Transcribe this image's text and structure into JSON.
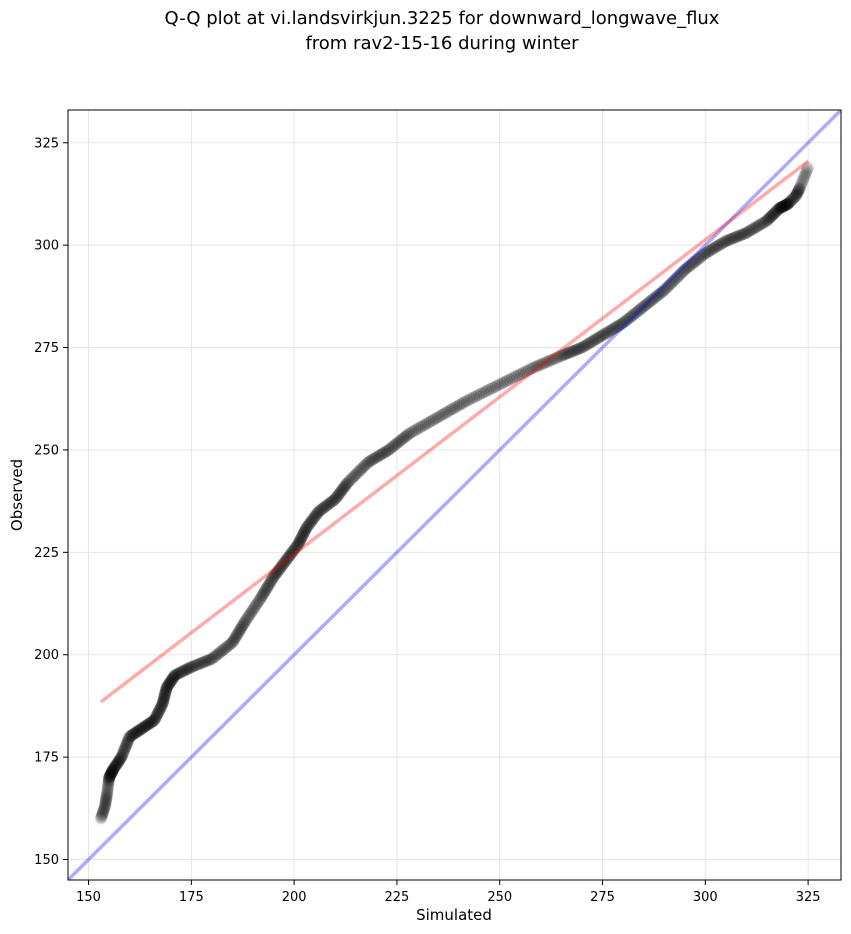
{
  "chart_data": {
    "type": "scatter",
    "title_lines": [
      "Q-Q plot at vi.landsvirkjun.3225 for downward_longwave_flux",
      "from rav2-15-16 during winter"
    ],
    "xlabel": "Simulated",
    "ylabel": "Observed",
    "xlim": [
      145,
      333
    ],
    "ylim": [
      145,
      333
    ],
    "xticks": [
      150,
      175,
      200,
      225,
      250,
      275,
      300,
      325
    ],
    "yticks": [
      150,
      175,
      200,
      225,
      250,
      275,
      300,
      325
    ],
    "grid": true,
    "colors": {
      "points": "#000000",
      "identity_line": "#0000ff",
      "fit_line": "#ff0000",
      "grid": "#e6e6e6"
    },
    "identity_line": {
      "x": [
        145,
        333
      ],
      "y": [
        145,
        333
      ]
    },
    "fit_line": {
      "x": [
        153,
        325
      ],
      "y": [
        188.5,
        320.5
      ]
    },
    "quantile_curve": [
      [
        153,
        160
      ],
      [
        154,
        163
      ],
      [
        154.5,
        166
      ],
      [
        155,
        170
      ],
      [
        156,
        172
      ],
      [
        158,
        175
      ],
      [
        160,
        180
      ],
      [
        163,
        182
      ],
      [
        166,
        184
      ],
      [
        168,
        188
      ],
      [
        169,
        192
      ],
      [
        171,
        195
      ],
      [
        175,
        197
      ],
      [
        180,
        199
      ],
      [
        185,
        203
      ],
      [
        188,
        208
      ],
      [
        192,
        214
      ],
      [
        195,
        219
      ],
      [
        198,
        223
      ],
      [
        201,
        227
      ],
      [
        203,
        231
      ],
      [
        206,
        235
      ],
      [
        210,
        238
      ],
      [
        213,
        242
      ],
      [
        218,
        247
      ],
      [
        223,
        250
      ],
      [
        228,
        254
      ],
      [
        235,
        258
      ],
      [
        242,
        262
      ],
      [
        250,
        266
      ],
      [
        258,
        270
      ],
      [
        265,
        273
      ],
      [
        270,
        275
      ],
      [
        275,
        278
      ],
      [
        280,
        281
      ],
      [
        285,
        285
      ],
      [
        290,
        289
      ],
      [
        295,
        294
      ],
      [
        300,
        298
      ],
      [
        305,
        301
      ],
      [
        310,
        303
      ],
      [
        315,
        306
      ],
      [
        318,
        309
      ],
      [
        320,
        310
      ],
      [
        322,
        312
      ],
      [
        323,
        314
      ],
      [
        325,
        319
      ]
    ],
    "n_points": 640
  }
}
